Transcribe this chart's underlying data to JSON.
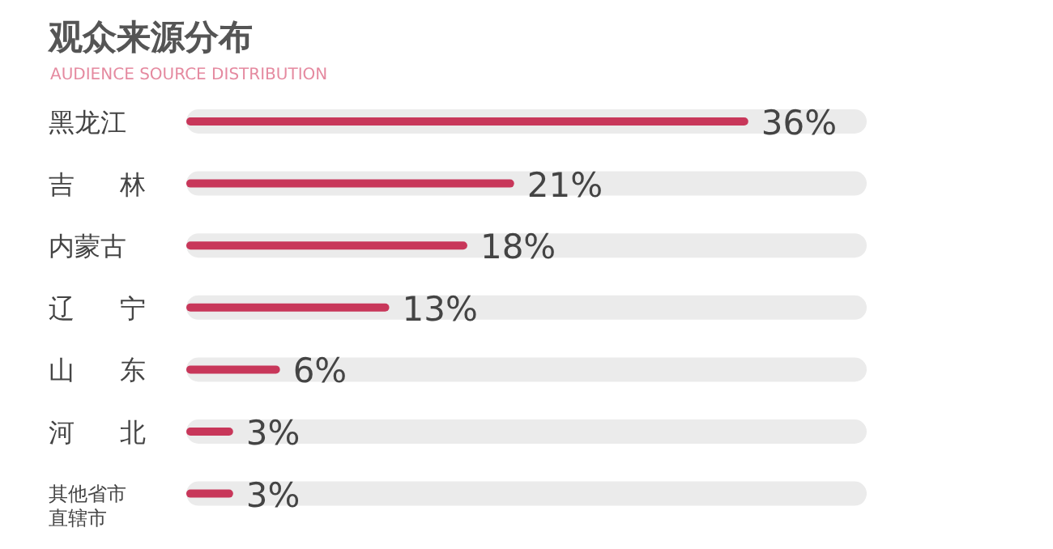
{
  "chart_data": {
    "type": "bar",
    "orientation": "horizontal",
    "title": "观众来源分布",
    "subtitle": "AUDIENCE SOURCE DISTRIBUTION",
    "categories": [
      "黑龙江",
      "吉林",
      "内蒙古",
      "辽宁",
      "山东",
      "河北",
      "其他省市直辖市"
    ],
    "values": [
      36,
      21,
      18,
      13,
      6,
      3,
      3
    ],
    "value_labels": [
      "36%",
      "21%",
      "18%",
      "13%",
      "6%",
      "3%",
      "3%"
    ],
    "color": "#c8375a"
  }
}
